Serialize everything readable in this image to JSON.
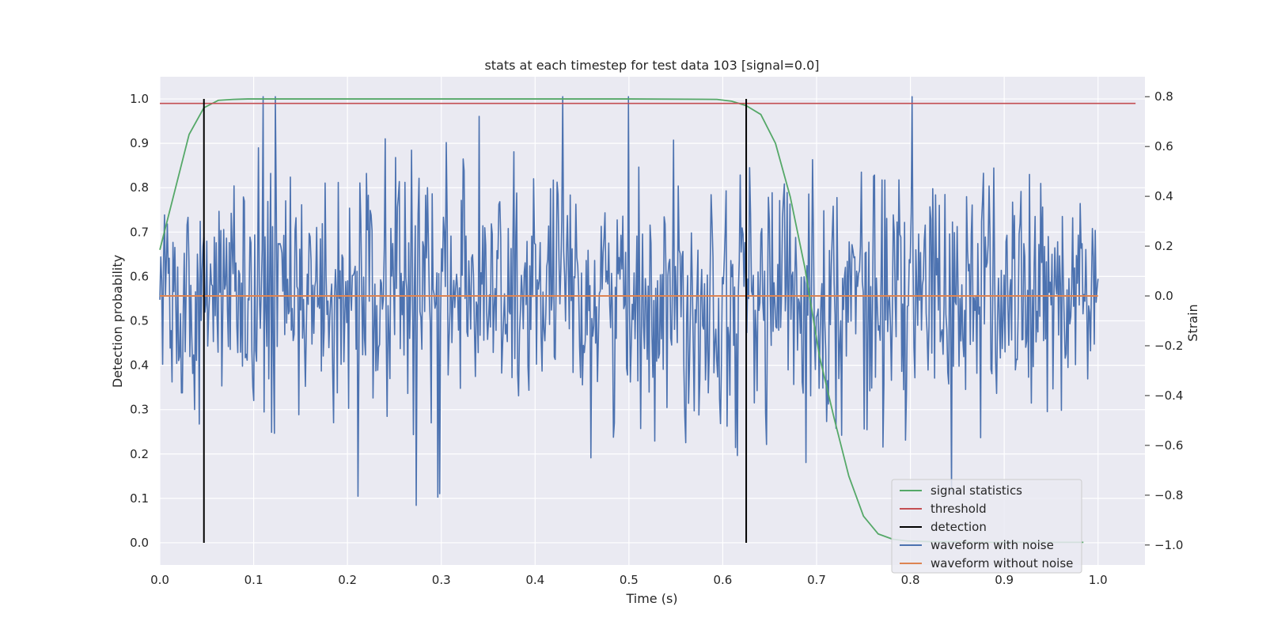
{
  "chart_data": {
    "type": "line",
    "title": "stats at each timestep for test data 103 [signal=0.0]",
    "xlabel": "Time (s)",
    "ylabel": "Detection probability",
    "y2label": "Strain",
    "xlim": [
      0.0,
      1.05
    ],
    "ylim": [
      -0.05,
      1.05
    ],
    "y2lim": [
      -1.08,
      0.88
    ],
    "xticks": [
      "0.0",
      "0.1",
      "0.2",
      "0.3",
      "0.4",
      "0.5",
      "0.6",
      "0.7",
      "0.8",
      "0.9",
      "1.0"
    ],
    "yticks": [
      "0.0",
      "0.1",
      "0.2",
      "0.3",
      "0.4",
      "0.5",
      "0.6",
      "0.7",
      "0.8",
      "0.9",
      "1.0"
    ],
    "y2ticks": [
      "−1.0",
      "−0.8",
      "−0.6",
      "−0.4",
      "−0.2",
      "0.0",
      "0.2",
      "0.4",
      "0.6",
      "0.8"
    ],
    "grid": true,
    "legend_position": "lower-right",
    "series": [
      {
        "name": "signal statistics",
        "color": "#55a868",
        "axis": "left",
        "x": [
          0.0,
          0.0156,
          0.0312,
          0.0469,
          0.0625,
          0.0781,
          0.0938,
          0.1094,
          0.125,
          0.25,
          0.375,
          0.5,
          0.5938,
          0.6094,
          0.625,
          0.6406,
          0.6562,
          0.6719,
          0.6875,
          0.7031,
          0.7188,
          0.7344,
          0.75,
          0.7656,
          0.7812,
          0.7969,
          0.8125,
          0.8281,
          0.8438,
          0.8594,
          0.875,
          0.8906,
          0.9062,
          0.9219,
          0.9375,
          0.9531,
          0.9688,
          0.9844
        ],
        "y": [
          0.66,
          0.79,
          0.92,
          0.98,
          0.997,
          0.999,
          1.0,
          1.0,
          1.0,
          1.0,
          1.0,
          1.0,
          0.999,
          0.995,
          0.985,
          0.965,
          0.9,
          0.78,
          0.62,
          0.42,
          0.28,
          0.15,
          0.06,
          0.02,
          0.008,
          0.004,
          0.003,
          0.002,
          0.002,
          0.001,
          0.001,
          0.001,
          0.001,
          0.001,
          0.001,
          0.001,
          0.001,
          0.001
        ]
      },
      {
        "name": "threshold",
        "color": "#c44e52",
        "axis": "left",
        "x": [
          0.0,
          1.04
        ],
        "y": [
          0.99,
          0.99
        ]
      },
      {
        "name": "detection",
        "color": "#000000",
        "axis": "left",
        "segments": [
          {
            "x": 0.047,
            "y": [
              0.0,
              1.0
            ]
          },
          {
            "x": 0.625,
            "y": [
              0.0,
              1.0
            ]
          }
        ]
      },
      {
        "name": "waveform with noise",
        "color": "#4c72b0",
        "axis": "right",
        "x_range": [
          0.0,
          1.0
        ],
        "n_points": 1000,
        "amplitude_range": [
          -1.0,
          0.8
        ],
        "approx_std": 0.25
      },
      {
        "name": "waveform without noise",
        "color": "#dd8452",
        "axis": "right",
        "x": [
          0.0,
          1.0
        ],
        "y": [
          0.0,
          0.0
        ]
      }
    ]
  }
}
